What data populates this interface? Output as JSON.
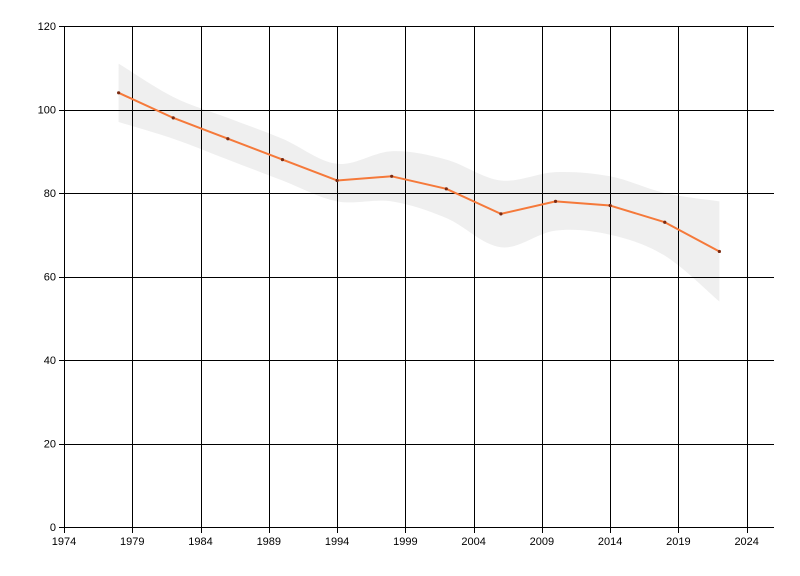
{
  "chart_data": {
    "type": "line",
    "title": "",
    "xlabel": "",
    "ylabel": "",
    "xlim": [
      1974,
      2026
    ],
    "ylim": [
      0,
      120
    ],
    "x_ticks": [
      1974,
      1979,
      1984,
      1989,
      1994,
      1999,
      2004,
      2009,
      2014,
      2019,
      2024
    ],
    "y_ticks": [
      0,
      20,
      40,
      60,
      80,
      100,
      120
    ],
    "grid": true,
    "legend": "none",
    "series": [
      {
        "color": "#f5793a",
        "x": [
          1978,
          1982,
          1986,
          1990,
          1994,
          1998,
          2002,
          2006,
          2010,
          2014,
          2018,
          2022
        ],
        "y": [
          104,
          98,
          93,
          88,
          83,
          84,
          81,
          75,
          78,
          77,
          73,
          66
        ],
        "upper": [
          111,
          103,
          98,
          93,
          87,
          90,
          88,
          83,
          85,
          84,
          80,
          78
        ],
        "lower": [
          97,
          93,
          88,
          83,
          78,
          78,
          74,
          67,
          71,
          70,
          65,
          54
        ]
      }
    ],
    "band_color": "#efefef",
    "grid_color": "#000000"
  }
}
